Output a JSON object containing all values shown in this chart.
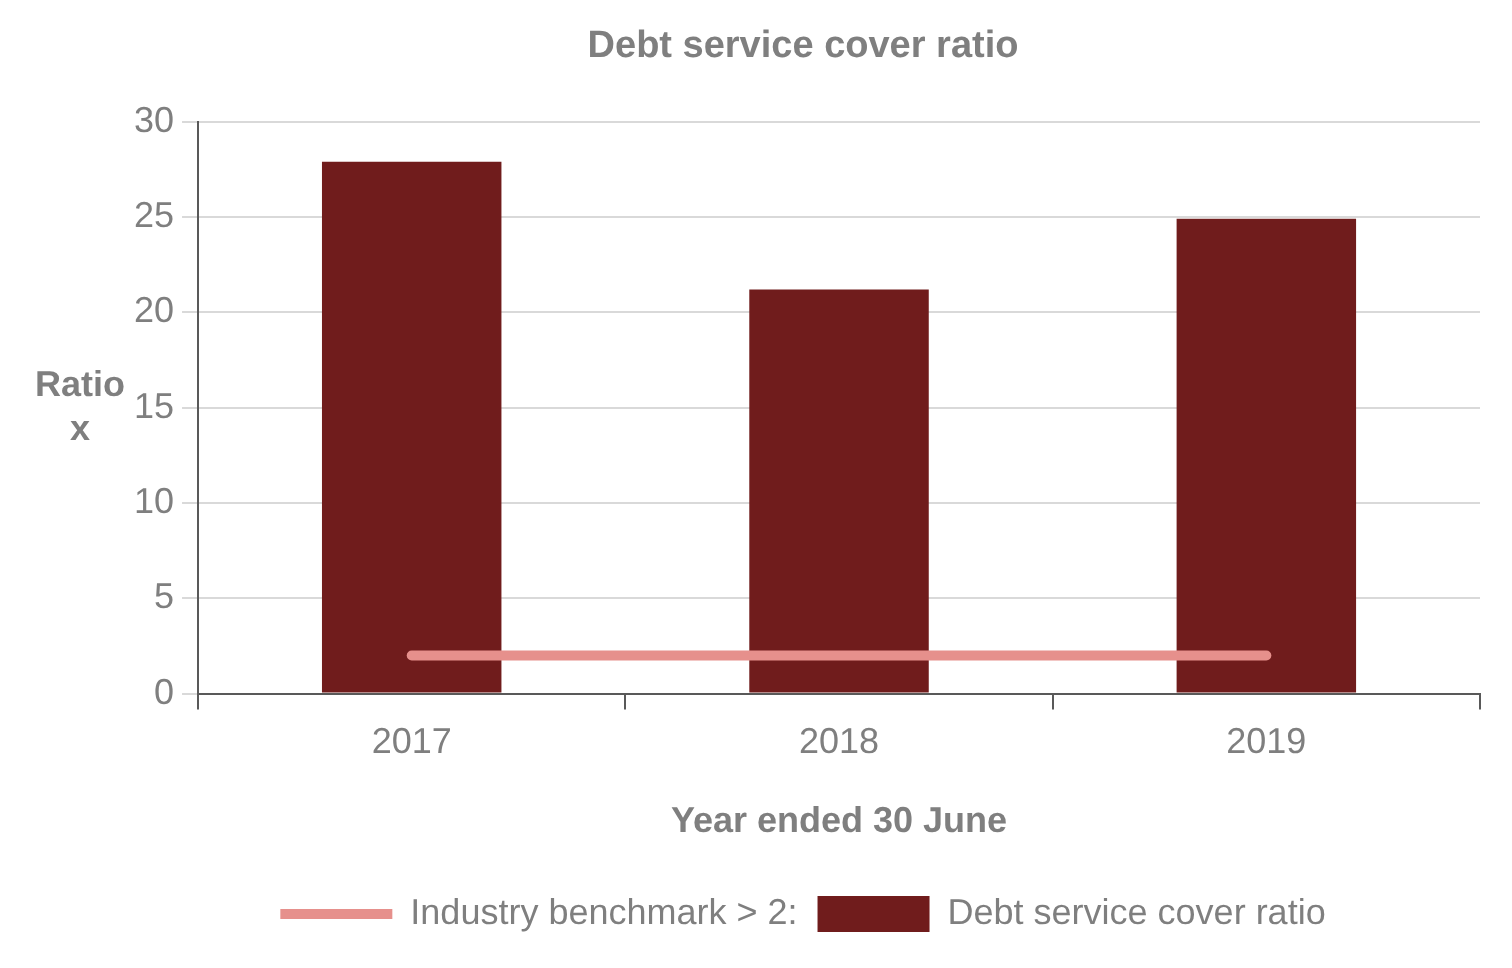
{
  "chart_data": {
    "type": "bar",
    "title": "Debt service cover ratio",
    "xlabel": "Year ended 30 June",
    "ylabel": "Ratio x",
    "categories": [
      "2017",
      "2018",
      "2019"
    ],
    "series": [
      {
        "name": "Debt service cover ratio",
        "color": "#701c1c",
        "values": [
          27.9,
          21.2,
          24.9
        ]
      },
      {
        "name": "Industry benchmark > 2:",
        "type": "line",
        "color": "#e6908c",
        "values": [
          2,
          2,
          2
        ]
      }
    ],
    "ylim": [
      0,
      30
    ],
    "yticks": [
      0,
      5,
      10,
      15,
      20,
      25,
      30
    ],
    "grid": "y",
    "legend": "bottom",
    "marker": "none"
  }
}
